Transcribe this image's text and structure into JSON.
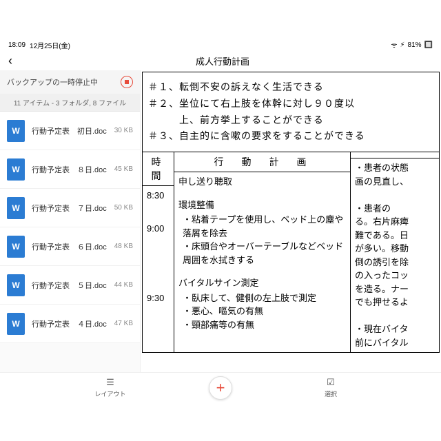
{
  "statusbar": {
    "time": "18:09",
    "date": "12月25日(金)",
    "battery": "81%"
  },
  "titlebar": {
    "title": "成人行動計画"
  },
  "sidebar": {
    "backup": "バックアップの一時停止中",
    "count": "11 アイテム - 3 フォルダ, 8 ファイル",
    "files": [
      {
        "name": "行動予定表　初日.doc",
        "size": "30 KB"
      },
      {
        "name": "行動予定表　８日.doc",
        "size": "45 KB"
      },
      {
        "name": "行動予定表　７日.doc",
        "size": "50 KB"
      },
      {
        "name": "行動予定表　６日.doc",
        "size": "48 KB"
      },
      {
        "name": "行動予定表　５日.doc",
        "size": "44 KB"
      },
      {
        "name": "行動予定表　４日.doc",
        "size": "47 KB"
      }
    ]
  },
  "doc": {
    "goals": [
      "＃１、転倒不安の訴えなく生活できる",
      "＃２、坐位にて右上肢を体幹に対し９０度以",
      "　　　上、前方挙上することができる",
      "＃３、自主的に含嗽の要求をすることができる"
    ],
    "headers": {
      "time": "時間",
      "plan": "行　動　計　画",
      "note": ""
    },
    "times": [
      "8:30",
      "9:00",
      "9:30"
    ],
    "plan": [
      {
        "title": "申し送り聴取",
        "items": []
      },
      {
        "title": "環境整備",
        "items": [
          "・粘着テープを使用し、ベッド上の塵や落屑を除去",
          "・床頭台やオーバーテーブルなどベッド周囲を水拭きする"
        ]
      },
      {
        "title": "バイタルサイン測定",
        "items": [
          "・臥床して、健側の左上肢で測定",
          "・悪心、嘔気の有無",
          "・頸部痛等の有無"
        ]
      }
    ],
    "notes": [
      "・患者の状態",
      "画の見直し、",
      "",
      "・患者の",
      "る。右片麻痺",
      "難である。日",
      "が多い。移動",
      "倒の誘引を除",
      "の入ったコッ",
      "を造る。ナー",
      "でも押せるよ",
      "",
      "・現在バイタ",
      "前にバイタル"
    ]
  },
  "bottombar": {
    "layout": "レイアウト",
    "select": "選択"
  }
}
